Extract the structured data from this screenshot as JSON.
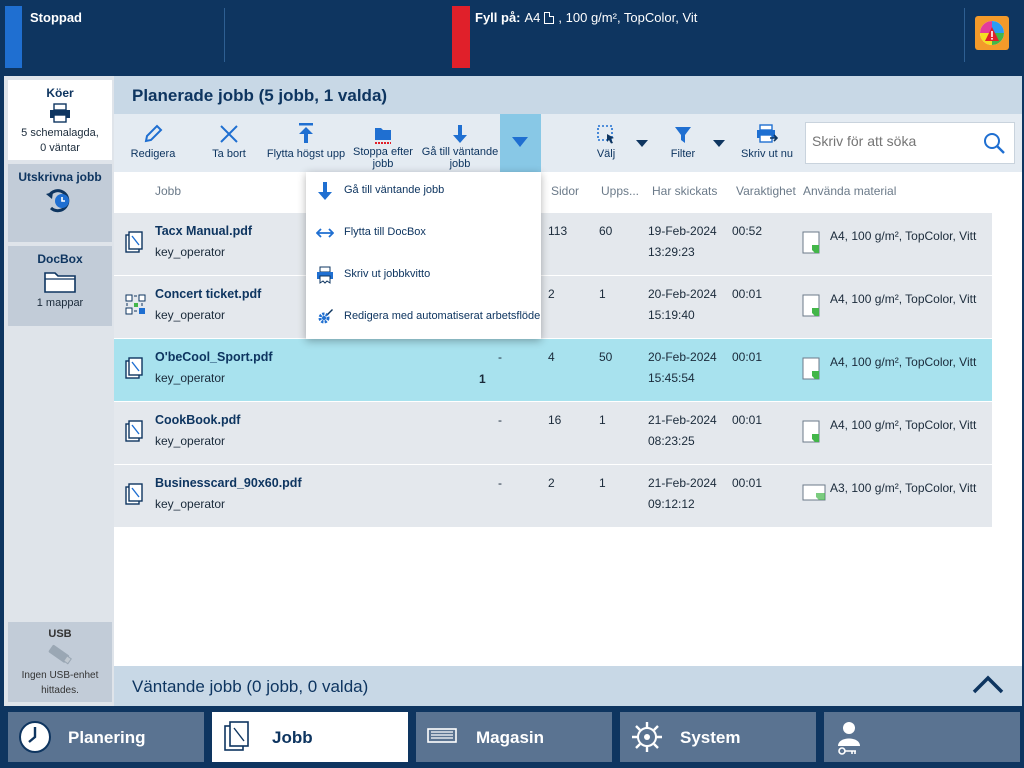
{
  "topbar": {
    "status": "Stoppad",
    "alert_label": "Fyll på:",
    "alert_text": "A4",
    "alert_detail": ", 100 g/m², TopColor, Vit"
  },
  "left": {
    "queues": {
      "title": "Köer",
      "line1": "5 schemalagda,",
      "line2": "0 väntar"
    },
    "printed": {
      "title": "Utskrivna jobb"
    },
    "docbox": {
      "title": "DocBox",
      "sub": "1 mappar"
    },
    "usb": {
      "title": "USB",
      "line1": "Ingen USB-enhet",
      "line2": "hittades."
    }
  },
  "main": {
    "title": "Planerade jobb (5 jobb, 1 valda)",
    "toolbar": {
      "edit": "Redigera",
      "delete": "Ta bort",
      "move_top": "Flytta högst upp",
      "stop_after_1": "Stoppa efter",
      "stop_after_2": "jobb",
      "to_waiting_1": "Gå till väntande",
      "to_waiting_2": "jobb",
      "select": "Välj",
      "filter": "Filter",
      "print_now": "Skriv ut nu",
      "search_placeholder": "Skriv för att söka"
    },
    "columns": {
      "job": "Jobb",
      "pages": "Sidor",
      "copies": "Upps...",
      "sent": "Har skickats",
      "duration": "Varaktighet",
      "media": "Använda material"
    },
    "jobs": [
      {
        "name": "Tacx Manual.pdf",
        "owner": "key_operator",
        "num": "",
        "dash": "",
        "pages": "113",
        "copies": "60",
        "date": "19-Feb-2024",
        "time": "13:29:23",
        "duration": "00:52",
        "media": "A4, 100 g/m², TopColor, Vitt"
      },
      {
        "name": "Concert ticket.pdf",
        "owner": "key_operator",
        "num": "",
        "dash": "",
        "pages": "2",
        "copies": "1",
        "date": "20-Feb-2024",
        "time": "15:19:40",
        "duration": "00:01",
        "media": "A4, 100 g/m², TopColor, Vitt"
      },
      {
        "name": "O'beCool_Sport.pdf",
        "owner": "key_operator",
        "num": "1",
        "dash": "-",
        "pages": "4",
        "copies": "50",
        "date": "20-Feb-2024",
        "time": "15:45:54",
        "duration": "00:01",
        "media": "A4, 100 g/m², TopColor, Vitt"
      },
      {
        "name": "CookBook.pdf",
        "owner": "key_operator",
        "num": "",
        "dash": "-",
        "pages": "16",
        "copies": "1",
        "date": "21-Feb-2024",
        "time": "08:23:25",
        "duration": "00:01",
        "media": "A4, 100 g/m², TopColor, Vitt"
      },
      {
        "name": "Businesscard_90x60.pdf",
        "owner": "key_operator",
        "num": "",
        "dash": "-",
        "pages": "2",
        "copies": "1",
        "date": "21-Feb-2024",
        "time": "09:12:12",
        "duration": "00:01",
        "media": "A3, 100 g/m², TopColor, Vitt"
      }
    ],
    "waiting_title": "Väntande jobb (0 jobb, 0 valda)"
  },
  "dropdown": {
    "items": [
      "Gå till väntande jobb",
      "Flytta till DocBox",
      "Skriv ut jobbkvitto",
      "Redigera med automatiserat arbetsflöde"
    ]
  },
  "nav": {
    "planning": "Planering",
    "jobs": "Jobb",
    "trays": "Magasin",
    "system": "System"
  },
  "colors": {
    "navy": "#0e3560",
    "selected_row": "#a8e2ee",
    "status_blue": "#1f6fd1",
    "alert_red": "#e0202a",
    "accent": "#88c8e6"
  }
}
